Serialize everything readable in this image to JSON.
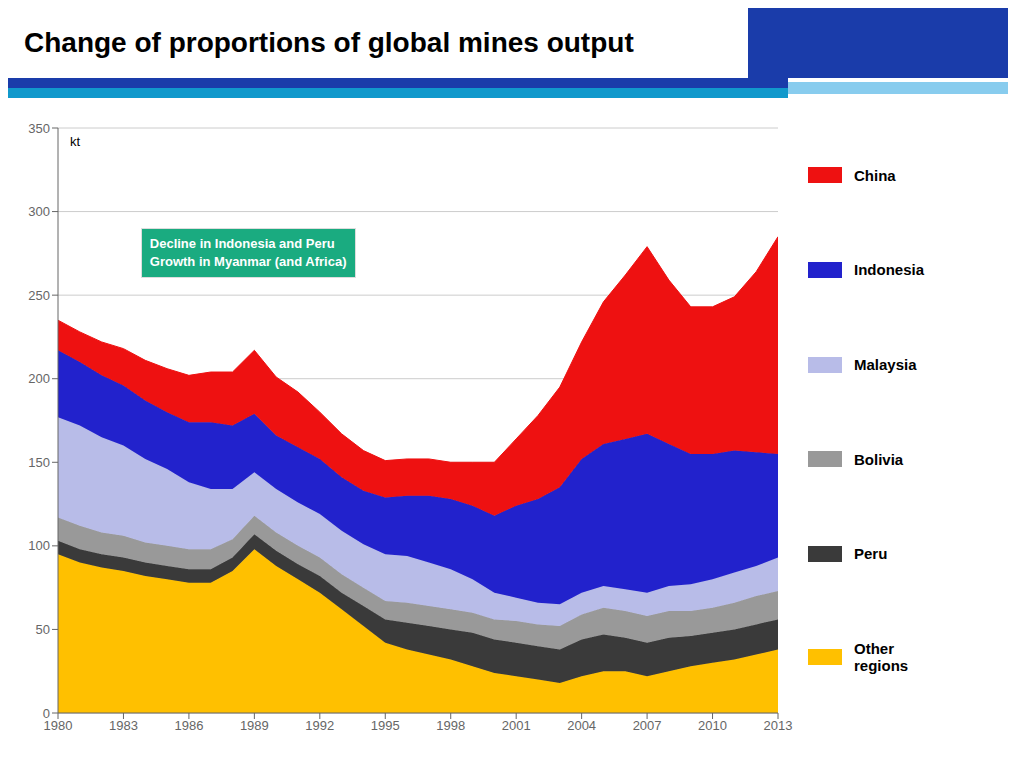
{
  "chart_data": {
    "type": "area",
    "title": "Change of proportions of global mines output",
    "ylabel": "kt",
    "annotations": [
      {
        "text": "Decline in Indonesia and Peru\nGrowth in Myanmar (and Africa)",
        "color": "#1aab80"
      }
    ],
    "x": [
      1980,
      1981,
      1982,
      1983,
      1984,
      1985,
      1986,
      1987,
      1988,
      1989,
      1990,
      1991,
      1992,
      1993,
      1994,
      1995,
      1996,
      1997,
      1998,
      1999,
      2000,
      2001,
      2002,
      2003,
      2004,
      2005,
      2006,
      2007,
      2008,
      2009,
      2010,
      2011,
      2012,
      2013
    ],
    "series": [
      {
        "name": "Other\nregions",
        "color": "#ffc000",
        "values": [
          95,
          90,
          87,
          85,
          82,
          80,
          78,
          78,
          85,
          98,
          88,
          80,
          72,
          62,
          52,
          42,
          38,
          35,
          32,
          28,
          24,
          22,
          20,
          18,
          22,
          25,
          25,
          22,
          25,
          28,
          30,
          32,
          35,
          38
        ]
      },
      {
        "name": "Peru",
        "color": "#3a3a3a",
        "values": [
          8,
          8,
          8,
          8,
          8,
          8,
          8,
          8,
          8,
          9,
          9,
          9,
          10,
          10,
          12,
          14,
          16,
          17,
          18,
          20,
          20,
          20,
          20,
          20,
          22,
          22,
          20,
          20,
          20,
          18,
          18,
          18,
          18,
          18
        ]
      },
      {
        "name": "Bolivia",
        "color": "#999999",
        "values": [
          14,
          14,
          13,
          13,
          12,
          12,
          12,
          12,
          11,
          11,
          11,
          11,
          11,
          11,
          11,
          11,
          12,
          12,
          12,
          12,
          12,
          13,
          13,
          14,
          15,
          16,
          16,
          16,
          16,
          15,
          15,
          16,
          17,
          17
        ]
      },
      {
        "name": "Malaysia",
        "color": "#b8bce8",
        "values": [
          60,
          60,
          57,
          54,
          50,
          46,
          40,
          36,
          30,
          26,
          26,
          26,
          26,
          26,
          26,
          28,
          28,
          26,
          24,
          20,
          16,
          14,
          13,
          13,
          13,
          13,
          13,
          14,
          15,
          16,
          17,
          18,
          18,
          20
        ]
      },
      {
        "name": "Indonesia",
        "color": "#2222cc",
        "values": [
          40,
          38,
          37,
          36,
          35,
          34,
          36,
          40,
          38,
          35,
          32,
          33,
          33,
          32,
          32,
          34,
          36,
          40,
          42,
          44,
          46,
          55,
          62,
          70,
          80,
          85,
          90,
          95,
          85,
          78,
          75,
          73,
          68,
          62
        ]
      },
      {
        "name": "China",
        "color": "#ee1111",
        "values": [
          18,
          18,
          20,
          22,
          24,
          26,
          28,
          30,
          32,
          38,
          35,
          33,
          28,
          26,
          24,
          22,
          22,
          22,
          22,
          26,
          32,
          40,
          50,
          60,
          70,
          85,
          98,
          112,
          98,
          88,
          88,
          92,
          108,
          130
        ]
      }
    ],
    "stacked": true,
    "xlim": [
      1980,
      2013
    ],
    "xticks": [
      1980,
      1983,
      1986,
      1989,
      1992,
      1995,
      1998,
      2001,
      2004,
      2007,
      2010,
      2013
    ],
    "ylim": [
      0,
      350
    ],
    "yticks": [
      0,
      50,
      100,
      150,
      200,
      250,
      300,
      350
    ],
    "grid": "y",
    "legend": "right"
  }
}
